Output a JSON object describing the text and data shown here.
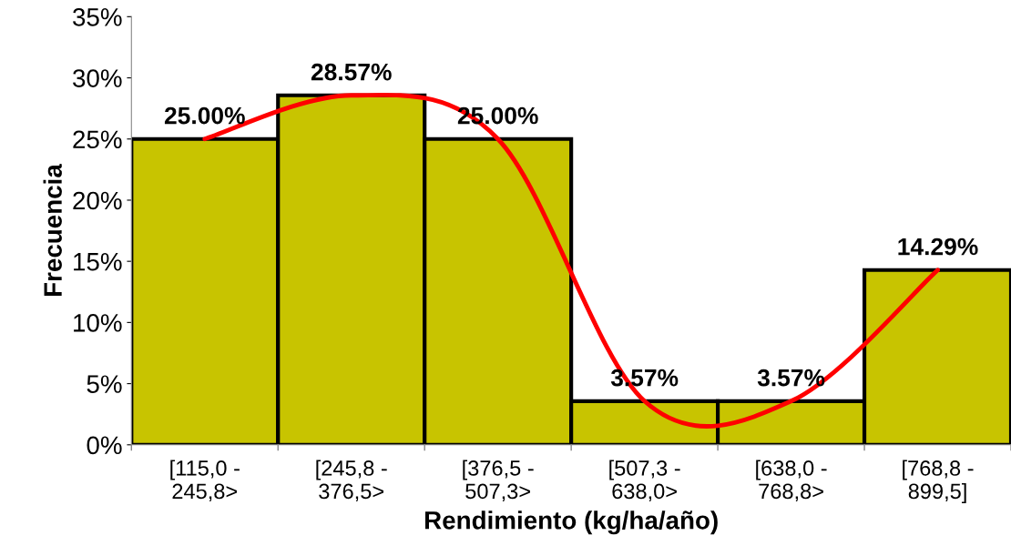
{
  "chart_data": {
    "type": "bar",
    "xlabel": "Rendimiento (kg/ha/año)",
    "ylabel": "Frecuencia",
    "categories": [
      "[115,0 -\n245,8>",
      "[245,8 -\n376,5>",
      "[376,5 -\n507,3>",
      "[507,3 -\n638,0>",
      "[638,0 -\n768,8>",
      "[768,8 -\n899,5]"
    ],
    "series": [
      {
        "color": "#c8c400",
        "values": [
          25.0,
          28.57,
          25.0,
          3.57,
          3.57,
          14.29
        ],
        "value_labels": [
          "25.00%",
          "28.57%",
          "25.00%",
          "3.57%",
          "3.57%",
          "14.29%"
        ]
      },
      {
        "type": "line",
        "color": "#ff0000",
        "values": [
          25.0,
          28.57,
          25.0,
          3.57,
          3.57,
          14.29
        ]
      }
    ],
    "ylim": [
      0,
      35
    ],
    "yticks": [
      {
        "value": 0,
        "label": "0%"
      },
      {
        "value": 5,
        "label": "5%"
      },
      {
        "value": 10,
        "label": "10%"
      },
      {
        "value": 15,
        "label": "15%"
      },
      {
        "value": 20,
        "label": "20%"
      },
      {
        "value": 25,
        "label": "25%"
      },
      {
        "value": 30,
        "label": "30%"
      },
      {
        "value": 35,
        "label": "35%"
      }
    ],
    "grid": false,
    "legend": false
  }
}
